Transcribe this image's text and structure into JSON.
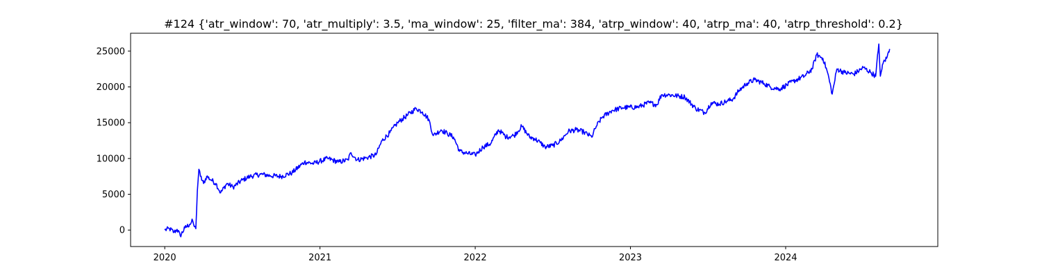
{
  "chart_data": {
    "type": "line",
    "title": "#124 {'atr_window': 70, 'atr_multiply': 3.5, 'ma_window': 25, 'filter_ma': 384, 'atrp_window': 40, 'atrp_ma': 40, 'atrp_threshold': 0.2}",
    "xlabel": "",
    "ylabel": "",
    "xlim": [
      2019.78,
      2024.98
    ],
    "ylim": [
      -2300,
      27500
    ],
    "x_ticks": [
      2020,
      2021,
      2022,
      2023,
      2024
    ],
    "x_tick_labels": [
      "2020",
      "2021",
      "2022",
      "2023",
      "2024"
    ],
    "y_ticks": [
      0,
      5000,
      10000,
      15000,
      20000,
      25000
    ],
    "y_tick_labels": [
      "0",
      "5000",
      "10000",
      "15000",
      "20000",
      "25000"
    ],
    "grid": false,
    "series": [
      {
        "color": "#0000ff",
        "x": [
          2020.0,
          2020.03,
          2020.06,
          2020.08,
          2020.1,
          2020.13,
          2020.16,
          2020.18,
          2020.19,
          2020.2,
          2020.21,
          2020.22,
          2020.23,
          2020.25,
          2020.27,
          2020.3,
          2020.33,
          2020.36,
          2020.4,
          2020.44,
          2020.5,
          2020.55,
          2020.62,
          2020.68,
          2020.75,
          2020.82,
          2020.9,
          2020.96,
          2021.05,
          2021.12,
          2021.18,
          2021.2,
          2021.24,
          2021.3,
          2021.36,
          2021.4,
          2021.45,
          2021.5,
          2021.56,
          2021.62,
          2021.66,
          2021.7,
          2021.73,
          2021.78,
          2021.82,
          2021.86,
          2021.9,
          2021.95,
          2022.0,
          2022.05,
          2022.1,
          2022.15,
          2022.2,
          2022.25,
          2022.3,
          2022.35,
          2022.38,
          2022.42,
          2022.45,
          2022.5,
          2022.55,
          2022.6,
          2022.65,
          2022.7,
          2022.75,
          2022.78,
          2022.82,
          2022.88,
          2022.95,
          2023.05,
          2023.12,
          2023.17,
          2023.2,
          2023.25,
          2023.35,
          2023.42,
          2023.48,
          2023.52,
          2023.57,
          2023.62,
          2023.66,
          2023.7,
          2023.75,
          2023.8,
          2023.86,
          2023.9,
          2023.96,
          2024.05,
          2024.12,
          2024.17,
          2024.2,
          2024.24,
          2024.27,
          2024.3,
          2024.33,
          2024.38,
          2024.44,
          2024.5,
          2024.55,
          2024.58,
          2024.6,
          2024.61,
          2024.62,
          2024.63,
          2024.65,
          2024.67
        ],
        "y": [
          0,
          200,
          -300,
          100,
          -800,
          300,
          800,
          1300,
          500,
          200,
          5500,
          8500,
          7500,
          6500,
          7500,
          7000,
          6500,
          5200,
          6500,
          6000,
          7000,
          7500,
          7800,
          7600,
          7500,
          8000,
          9500,
          9300,
          10000,
          9500,
          9800,
          10800,
          9800,
          10100,
          10500,
          12500,
          13600,
          15000,
          16000,
          17000,
          16500,
          15500,
          13200,
          14000,
          13500,
          13000,
          11000,
          10700,
          10500,
          11600,
          12100,
          14000,
          13000,
          13200,
          14500,
          13000,
          12800,
          12200,
          11600,
          11800,
          12500,
          13800,
          14000,
          13700,
          13000,
          14500,
          15800,
          16700,
          17100,
          17200,
          17800,
          17500,
          18900,
          18900,
          18600,
          17000,
          16400,
          17800,
          17600,
          18000,
          18300,
          19500,
          20500,
          21000,
          20500,
          20000,
          19700,
          20800,
          21500,
          22500,
          24500,
          24000,
          22000,
          19000,
          22500,
          22000,
          21800,
          22700,
          22000,
          21500,
          26000,
          21500,
          22500,
          23500,
          24000,
          25300
        ]
      }
    ]
  }
}
